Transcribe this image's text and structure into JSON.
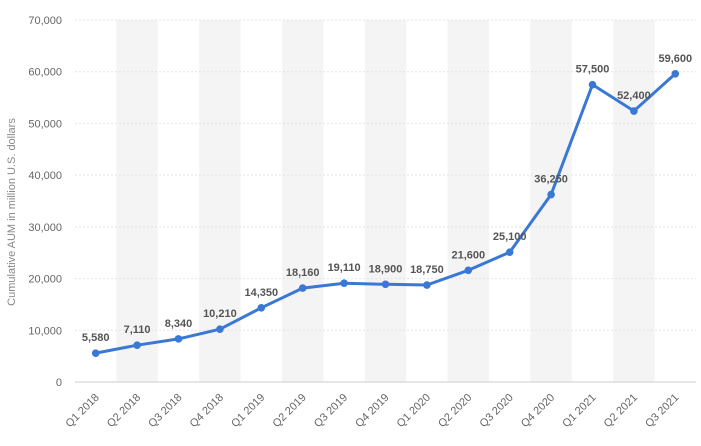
{
  "chart_data": {
    "type": "line",
    "title": "",
    "xlabel": "",
    "ylabel": "Cumulative AUM in million U.S. dollars",
    "ylim": [
      0,
      70000
    ],
    "yticks": [
      0,
      10000,
      20000,
      30000,
      40000,
      50000,
      60000,
      70000
    ],
    "ytick_labels": [
      "0",
      "10,000",
      "20,000",
      "30,000",
      "40,000",
      "50,000",
      "60,000",
      "70,000"
    ],
    "grid": true,
    "categories": [
      "Q1 2018",
      "Q2 2018",
      "Q3 2018",
      "Q4 2018",
      "Q1 2019",
      "Q2 2019",
      "Q3 2019",
      "Q4 2019",
      "Q1 2020",
      "Q2 2020",
      "Q3 2020",
      "Q4 2020",
      "Q1 2021",
      "Q2 2021",
      "Q3 2021"
    ],
    "values": [
      5580,
      7110,
      8340,
      10210,
      14350,
      18160,
      19110,
      18900,
      18750,
      21600,
      25100,
      36250,
      57500,
      52400,
      59600
    ],
    "value_labels": [
      "5,580",
      "7,110",
      "8,340",
      "10,210",
      "14,350",
      "18,160",
      "19,110",
      "18,900",
      "18,750",
      "21,600",
      "25,100",
      "36,250",
      "57,500",
      "52,400",
      "59,600"
    ],
    "line_color": "#3a78d6",
    "band_color": "#f4f4f4",
    "grid_color": "#e3e3e3"
  }
}
